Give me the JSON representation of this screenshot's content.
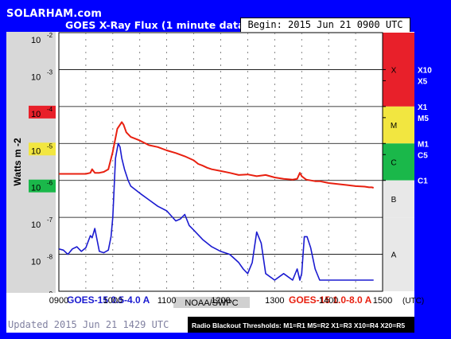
{
  "header": {
    "site": "SOLARHAM.com",
    "title": "GOES X-Ray Flux (1 minute data)",
    "begin": "Begin: 2015 Jun 21 0900 UTC"
  },
  "footer": {
    "legend_short": "GOES-15 0.5-4.0 A",
    "source": "NOAA/SWPC",
    "legend_long": "GOES-15 1.0-8.0 A",
    "updated": "Updated 2015 Jun 21 1429 UTC",
    "thresholds": "Radio Blackout Thresholds:  M1=R1  M5=R2  X1=R3  X10=R4  X20=R5"
  },
  "colors": {
    "long_series": "#e82010",
    "short_series": "#1a1ad0",
    "flare_X": "#e8202a",
    "flare_M": "#f2e640",
    "flare_C": "#1ab84a",
    "flare_B": "#e8e8e8",
    "flare_A": "#e8e8e8",
    "ylabel_red": "#e8202a",
    "ylabel_yellow": "#f2e640",
    "ylabel_green": "#1ab84a"
  },
  "chart_data": {
    "type": "line",
    "title": "GOES X-Ray Flux (1 minute data)",
    "ylabel": "Watts m -2",
    "xlabel": "",
    "x_unit": "(UTC)",
    "x_ticks": [
      "0900",
      "1000",
      "1100",
      "1200",
      "1300",
      "1400",
      "1500"
    ],
    "x_range_minutes": [
      540,
      900
    ],
    "y_scale": "log",
    "ylim": [
      1e-09,
      0.01
    ],
    "y_ticks": [
      {
        "base": "10",
        "exp": "-2",
        "value": 0.01
      },
      {
        "base": "10",
        "exp": "-3",
        "value": 0.001
      },
      {
        "base": "10",
        "exp": "-4",
        "value": 0.0001
      },
      {
        "base": "10",
        "exp": "-5",
        "value": 1e-05
      },
      {
        "base": "10",
        "exp": "-6",
        "value": 1e-06
      },
      {
        "base": "10",
        "exp": "-7",
        "value": 1e-07
      },
      {
        "base": "10",
        "exp": "-8",
        "value": 1e-08
      },
      {
        "base": "10",
        "exp": "-9",
        "value": 1e-09
      }
    ],
    "right_labels": [
      {
        "text": "X10",
        "value": 0.001
      },
      {
        "text": "X5",
        "value": 0.0005
      },
      {
        "text": "X1",
        "value": 0.0001
      },
      {
        "text": "M5",
        "value": 5e-05
      },
      {
        "text": "M1",
        "value": 1e-05
      },
      {
        "text": "C5",
        "value": 5e-06
      },
      {
        "text": "C1",
        "value": 1e-06
      }
    ],
    "flare_classes": [
      {
        "label": "X",
        "from": 0.0001,
        "to": 0.01,
        "color": "#e8202a"
      },
      {
        "label": "M",
        "from": 1e-05,
        "to": 0.0001,
        "color": "#f2e640"
      },
      {
        "label": "C",
        "from": 1e-06,
        "to": 1e-05,
        "color": "#1ab84a"
      },
      {
        "label": "B",
        "from": 1e-07,
        "to": 1e-06,
        "color": "#e8e8e8"
      },
      {
        "label": "A",
        "from": 1e-09,
        "to": 1e-07,
        "color": "#e8e8e8"
      }
    ],
    "grid": true,
    "series": [
      {
        "name": "GOES-15 1.0-8.0 A",
        "color": "#e82010",
        "x": [
          540,
          550,
          560,
          570,
          575,
          577,
          580,
          582,
          585,
          590,
          595,
          600,
          605,
          610,
          612,
          615,
          620,
          630,
          640,
          650,
          660,
          670,
          680,
          690,
          695,
          700,
          705,
          710,
          720,
          730,
          740,
          750,
          760,
          770,
          780,
          790,
          800,
          805,
          808,
          810,
          815,
          820,
          825,
          830,
          840,
          850,
          860,
          870,
          880,
          885,
          888,
          890
        ],
        "y": [
          1.5e-06,
          1.5e-06,
          1.5e-06,
          1.5e-06,
          1.6e-06,
          2e-06,
          1.6e-06,
          1.6e-06,
          1.6e-06,
          1.7e-06,
          2e-06,
          6e-06,
          2.5e-05,
          3.8e-05,
          3.2e-05,
          2e-05,
          1.5e-05,
          1.2e-05,
          9e-06,
          8e-06,
          6.5e-06,
          5.5e-06,
          4.5e-06,
          3.5e-06,
          2.8e-06,
          2.5e-06,
          2.2e-06,
          2e-06,
          1.8e-06,
          1.6e-06,
          1.4e-06,
          1.45e-06,
          1.3e-06,
          1.4e-06,
          1.2e-06,
          1.1e-06,
          1.05e-06,
          1.1e-06,
          1.6e-06,
          1.3e-06,
          1.05e-06,
          1e-06,
          9.5e-07,
          9.5e-07,
          8.5e-07,
          8e-07,
          7.5e-07,
          7e-07,
          6.8e-07,
          6.5e-07,
          6.5e-07,
          6.3e-07
        ]
      },
      {
        "name": "GOES-15 0.5-4.0 A",
        "color": "#1a1ad0",
        "x": [
          540,
          545,
          550,
          555,
          560,
          565,
          570,
          575,
          577,
          580,
          585,
          590,
          595,
          598,
          600,
          603,
          606,
          608,
          610,
          613,
          617,
          620,
          630,
          640,
          650,
          660,
          670,
          675,
          680,
          685,
          690,
          700,
          710,
          720,
          730,
          740,
          745,
          750,
          755,
          760,
          765,
          770,
          780,
          790,
          800,
          805,
          808,
          810,
          813,
          816,
          820,
          825,
          830,
          840,
          850,
          860,
          870,
          880,
          885,
          890
        ],
        "y": [
          1.4e-08,
          1.3e-08,
          1e-08,
          1.4e-08,
          1.6e-08,
          1.2e-08,
          1.5e-08,
          3.2e-08,
          2.8e-08,
          5e-08,
          1.2e-08,
          1.1e-08,
          1.3e-08,
          3e-08,
          1e-07,
          4e-06,
          1e-05,
          8e-06,
          4e-06,
          2e-06,
          1e-06,
          7e-07,
          4.5e-07,
          3e-07,
          2e-07,
          1.5e-07,
          8e-08,
          9e-08,
          1.2e-07,
          6e-08,
          4.5e-08,
          2.5e-08,
          1.6e-08,
          1.2e-08,
          1e-08,
          6e-09,
          4e-09,
          3e-09,
          6e-09,
          4e-08,
          2e-08,
          3e-09,
          2e-09,
          3e-09,
          2e-09,
          4e-09,
          2e-09,
          3e-09,
          3e-08,
          3e-08,
          1.5e-08,
          4e-09,
          2e-09,
          2e-09,
          2e-09,
          2e-09,
          2e-09,
          2e-09,
          2e-09,
          2e-09
        ]
      }
    ]
  }
}
